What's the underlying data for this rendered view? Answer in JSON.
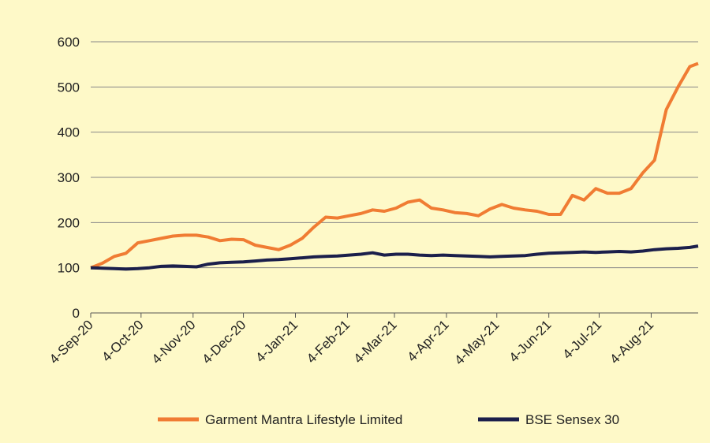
{
  "chart_data": {
    "type": "line",
    "x": [
      "2020-09-04",
      "2020-09-11",
      "2020-09-18",
      "2020-09-25",
      "2020-10-02",
      "2020-10-09",
      "2020-10-16",
      "2020-10-23",
      "2020-10-30",
      "2020-11-06",
      "2020-11-13",
      "2020-11-20",
      "2020-11-27",
      "2020-12-04",
      "2020-12-11",
      "2020-12-18",
      "2020-12-25",
      "2021-01-01",
      "2021-01-08",
      "2021-01-15",
      "2021-01-22",
      "2021-01-29",
      "2021-02-05",
      "2021-02-12",
      "2021-02-19",
      "2021-02-26",
      "2021-03-05",
      "2021-03-12",
      "2021-03-19",
      "2021-03-26",
      "2021-04-02",
      "2021-04-09",
      "2021-04-16",
      "2021-04-23",
      "2021-04-30",
      "2021-05-07",
      "2021-05-14",
      "2021-05-21",
      "2021-05-28",
      "2021-06-04",
      "2021-06-11",
      "2021-06-18",
      "2021-06-25",
      "2021-07-02",
      "2021-07-09",
      "2021-07-16",
      "2021-07-23",
      "2021-07-30",
      "2021-08-06",
      "2021-08-13",
      "2021-08-20",
      "2021-08-27",
      "2021-09-01"
    ],
    "series": [
      {
        "name": "Garment Mantra Lifestyle Limited",
        "color": "#f07c33",
        "values": [
          100,
          110,
          125,
          132,
          155,
          160,
          165,
          170,
          172,
          172,
          168,
          160,
          163,
          162,
          150,
          145,
          140,
          150,
          165,
          190,
          212,
          210,
          215,
          220,
          228,
          225,
          232,
          245,
          250,
          232,
          228,
          222,
          220,
          215,
          230,
          240,
          232,
          228,
          225,
          218,
          218,
          260,
          250,
          275,
          265,
          265,
          275,
          310,
          338,
          450,
          500,
          545,
          552
        ]
      },
      {
        "name": "BSE Sensex 30",
        "color": "#1b1f4b",
        "values": [
          100,
          99,
          98,
          97,
          98,
          100,
          103,
          104,
          103,
          102,
          108,
          111,
          112,
          113,
          115,
          117,
          118,
          120,
          122,
          124,
          125,
          126,
          128,
          130,
          133,
          128,
          130,
          130,
          128,
          127,
          128,
          127,
          126,
          125,
          124,
          125,
          126,
          127,
          130,
          132,
          133,
          134,
          135,
          134,
          135,
          136,
          135,
          137,
          140,
          142,
          143,
          145,
          148
        ]
      }
    ],
    "xlim": [
      "2020-09-04",
      "2021-09-01"
    ],
    "xticks": [
      {
        "value": "2020-09-04",
        "label": "4-Sep-20"
      },
      {
        "value": "2020-10-04",
        "label": "4-Oct-20"
      },
      {
        "value": "2020-11-04",
        "label": "4-Nov-20"
      },
      {
        "value": "2020-12-04",
        "label": "4-Dec-20"
      },
      {
        "value": "2021-01-04",
        "label": "4-Jan-21"
      },
      {
        "value": "2021-02-04",
        "label": "4-Feb-21"
      },
      {
        "value": "2021-03-04",
        "label": "4-Mar-21"
      },
      {
        "value": "2021-04-04",
        "label": "4-Apr-21"
      },
      {
        "value": "2021-05-04",
        "label": "4-May-21"
      },
      {
        "value": "2021-06-04",
        "label": "4-Jun-21"
      },
      {
        "value": "2021-07-04",
        "label": "4-Jul-21"
      },
      {
        "value": "2021-08-04",
        "label": "4-Aug-21"
      }
    ],
    "ylim": [
      0,
      600
    ],
    "yticks": [
      0,
      100,
      200,
      300,
      400,
      500,
      600
    ],
    "grid": true,
    "legend": "bottom"
  }
}
